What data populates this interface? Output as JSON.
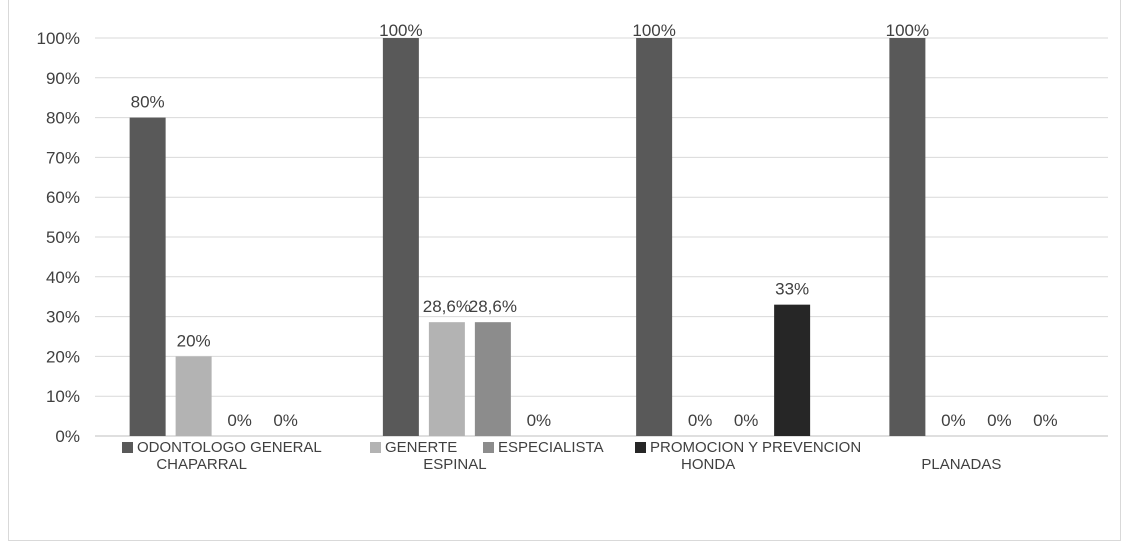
{
  "chart_data": {
    "type": "bar",
    "title": "",
    "xlabel": "",
    "ylabel": "",
    "categories": [
      "CHAPARRAL",
      "ESPINAL",
      "HONDA",
      "PLANADAS"
    ],
    "series": [
      {
        "name": "ODONTOLOGO GENERAL",
        "color": "#595959",
        "values": [
          80,
          100,
          100,
          100
        ],
        "labels": [
          "80%",
          "100%",
          "100%",
          "100%"
        ]
      },
      {
        "name": "GENERTE",
        "color": "#b3b3b3",
        "values": [
          20,
          28.6,
          0,
          0
        ],
        "labels": [
          "20%",
          "28,6%",
          "0%",
          "0%"
        ]
      },
      {
        "name": "ESPECIALISTA",
        "color": "#8c8c8c",
        "values": [
          0,
          28.6,
          0,
          0
        ],
        "labels": [
          "0%",
          "28,6%",
          "0%",
          "0%"
        ]
      },
      {
        "name": "PROMOCION Y PREVENCION",
        "color": "#262626",
        "values": [
          0,
          0,
          33,
          0
        ],
        "labels": [
          "0%",
          "0%",
          "33%",
          "0%"
        ]
      }
    ],
    "ylim": [
      0,
      100
    ],
    "yticks": [
      "0%",
      "10%",
      "20%",
      "30%",
      "40%",
      "50%",
      "60%",
      "70%",
      "80%",
      "90%",
      "100%"
    ],
    "grid": true,
    "legend": "bottom"
  }
}
